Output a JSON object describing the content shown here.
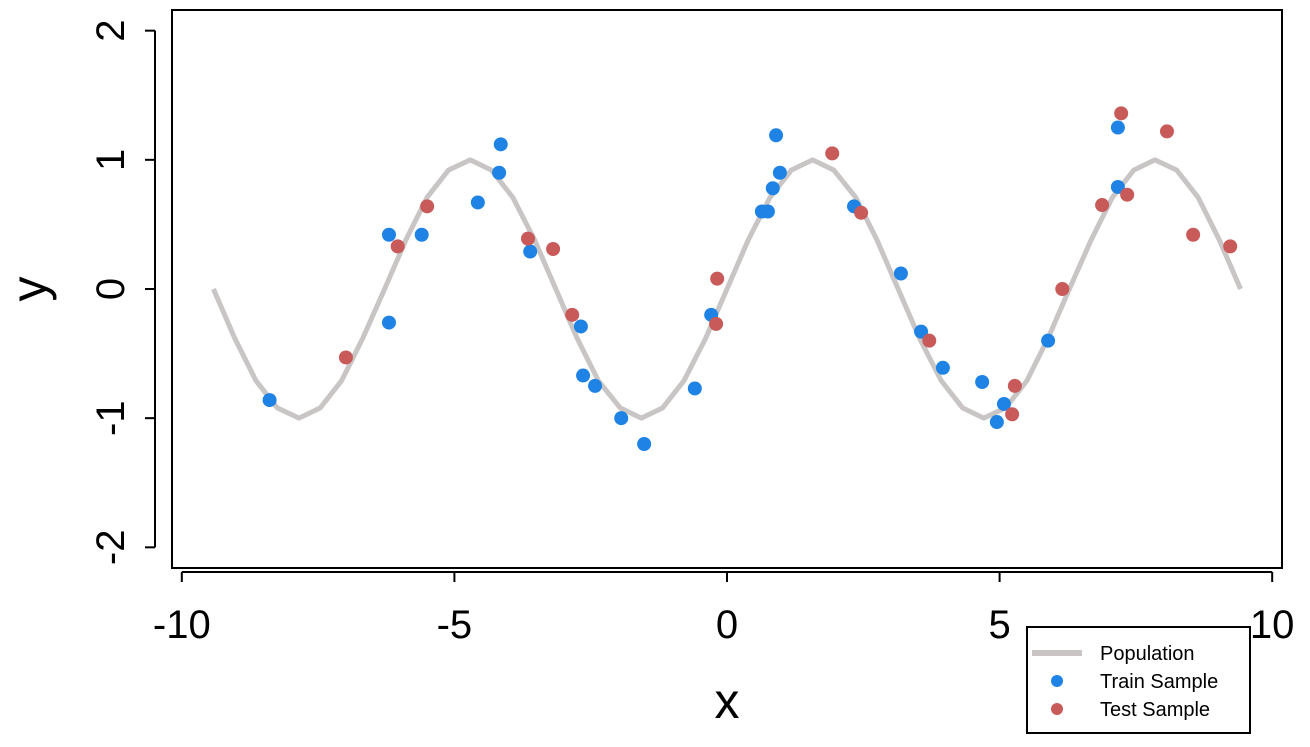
{
  "chart_data": {
    "type": "scatter",
    "xlabel": "x",
    "ylabel": "y",
    "xlim": [
      -10.18,
      10.18
    ],
    "ylim": [
      -2.16,
      2.16
    ],
    "xticks": [
      -10,
      -5,
      0,
      5,
      10
    ],
    "yticks": [
      -2,
      -1,
      0,
      1,
      2
    ],
    "legend": "bottom-right",
    "series": [
      {
        "name": "Population",
        "type": "line",
        "color": "#c9c5c5",
        "x": [
          -9.42,
          -9.03,
          -8.64,
          -8.25,
          -7.85,
          -7.46,
          -7.07,
          -6.68,
          -6.28,
          -5.89,
          -5.5,
          -5.11,
          -4.71,
          -4.32,
          -3.93,
          -3.53,
          -3.14,
          -2.75,
          -2.36,
          -1.96,
          -1.57,
          -1.18,
          -0.79,
          -0.39,
          0,
          0.39,
          0.79,
          1.18,
          1.57,
          1.96,
          2.36,
          2.75,
          3.14,
          3.53,
          3.93,
          4.32,
          4.71,
          5.11,
          5.5,
          5.89,
          6.28,
          6.68,
          7.07,
          7.46,
          7.85,
          8.25,
          8.64,
          9.03,
          9.42
        ],
        "values": [
          0,
          -0.38,
          -0.71,
          -0.92,
          -1,
          -0.92,
          -0.71,
          -0.38,
          0,
          0.38,
          0.71,
          0.92,
          1,
          0.92,
          0.71,
          0.38,
          0,
          -0.38,
          -0.71,
          -0.92,
          -1,
          -0.92,
          -0.71,
          -0.38,
          0,
          0.38,
          0.71,
          0.92,
          1,
          0.92,
          0.71,
          0.38,
          0,
          -0.38,
          -0.71,
          -0.92,
          -1,
          -0.92,
          -0.71,
          -0.38,
          0,
          0.38,
          0.71,
          0.92,
          1,
          0.92,
          0.71,
          0.38,
          0
        ]
      },
      {
        "name": "Train Sample",
        "type": "scatter",
        "color": "#1e83e4",
        "x": [
          -8.39,
          -6.2,
          -6.2,
          -5.6,
          -4.57,
          -4.18,
          -4.15,
          -3.61,
          -2.68,
          -2.64,
          -2.42,
          -1.94,
          -1.52,
          -0.59,
          -0.29,
          0.64,
          0.75,
          0.84,
          0.9,
          0.97,
          2.33,
          3.19,
          3.56,
          3.96,
          4.68,
          4.95,
          5.08,
          5.89,
          7.17,
          7.17
        ],
        "values": [
          -0.86,
          0.42,
          -0.26,
          0.42,
          0.67,
          0.9,
          1.12,
          0.29,
          -0.29,
          -0.67,
          -0.75,
          -1.0,
          -1.2,
          -0.77,
          -0.2,
          0.6,
          0.6,
          0.78,
          1.19,
          0.9,
          0.64,
          0.12,
          -0.33,
          -0.61,
          -0.72,
          -1.03,
          -0.89,
          -0.4,
          1.25,
          0.79
        ]
      },
      {
        "name": "Test Sample",
        "type": "scatter",
        "color": "#c85a5a",
        "x": [
          -6.99,
          -6.04,
          -5.5,
          -3.65,
          -3.19,
          -2.84,
          -0.2,
          -0.18,
          1.93,
          2.46,
          3.71,
          5.23,
          5.28,
          6.15,
          6.88,
          7.23,
          7.34,
          8.07,
          8.55,
          9.23
        ],
        "values": [
          -0.53,
          0.33,
          0.64,
          0.39,
          0.31,
          -0.2,
          -0.27,
          0.08,
          1.05,
          0.59,
          -0.4,
          -0.97,
          -0.75,
          0.0,
          0.65,
          1.36,
          0.73,
          1.22,
          0.42,
          0.33
        ]
      }
    ]
  }
}
